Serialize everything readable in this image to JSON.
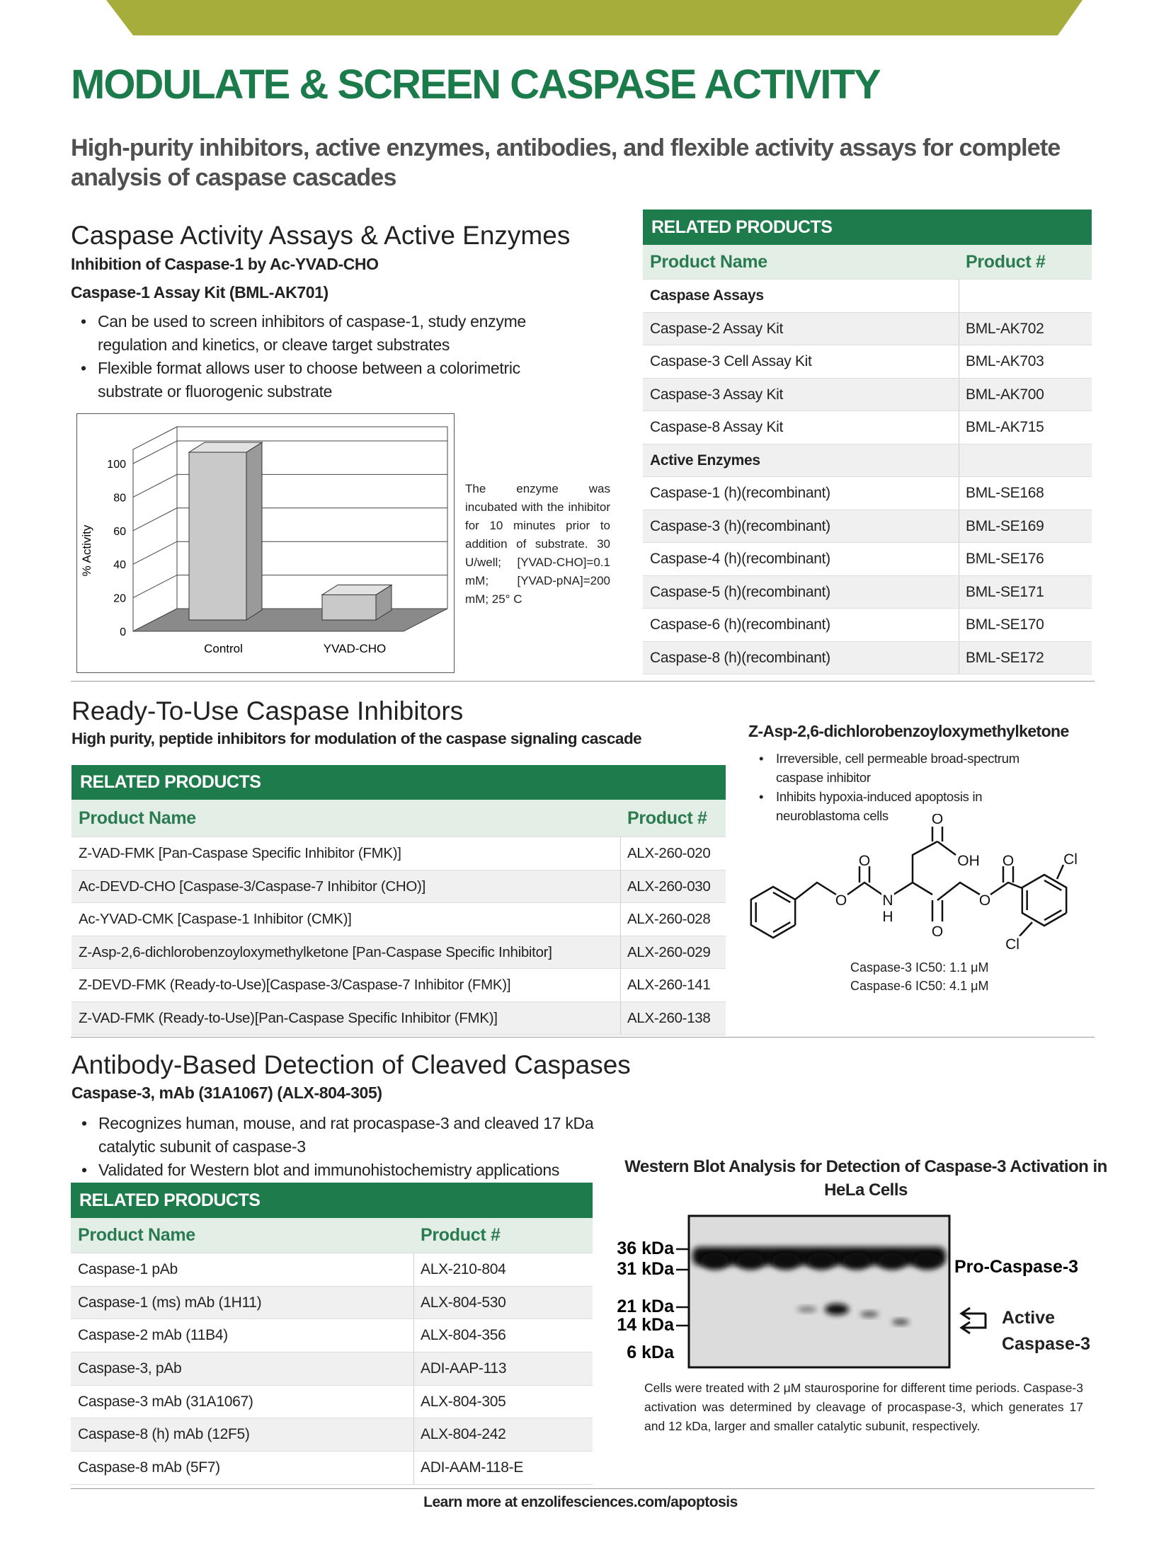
{
  "header": {
    "title": "MODULATE & SCREEN CASPASE ACTIVITY",
    "subtitle": "High-purity inhibitors, active enzymes, antibodies, and flexible activity assays for complete analysis of caspase cascades"
  },
  "sections": [
    {
      "title": "Caspase Activity Assays & Active Enzymes",
      "subtitle": "Inhibition of Caspase-1 by Ac-YVAD-CHO",
      "product": "Caspase-1 Assay Kit (BML-AK701)",
      "bullets": [
        "Can be used to screen inhibitors of caspase-1, study enzyme regulation and kinetics, or cleave target substrates",
        "Flexible format allows user to choose between a colorimetric substrate or fluorogenic substrate"
      ],
      "chart": {
        "type": "bar",
        "y_label": "% Activity",
        "categories": [
          "Control",
          "YVAD-CHO"
        ],
        "values": [
          100,
          15
        ],
        "color": "#c9c9c9",
        "ylim": [
          0,
          100
        ],
        "yticks": [
          0,
          20,
          40,
          60,
          80,
          100
        ],
        "grid": true
      },
      "caption": "The enzyme was incubated with the inhibitor for 10 minutes prior to addition of substrate. 30 U/well; [YVAD-CHO]=0.1 mM; [YVAD-pNA]=200 mM; 25° C",
      "table": {
        "heading": "RELATED PRODUCTS",
        "columns": [
          "Product Name",
          "Product #"
        ],
        "groups": [
          {
            "name": "Caspase Assays",
            "rows": [
              [
                "Caspase-2 Assay Kit",
                "BML-AK702"
              ],
              [
                "Caspase-3 Cell Assay Kit",
                "BML-AK703"
              ],
              [
                "Caspase-3 Assay Kit",
                "BML-AK700"
              ],
              [
                "Caspase-8 Assay Kit",
                "BML-AK715"
              ]
            ]
          },
          {
            "name": "Active Enzymes",
            "rows": [
              [
                "Caspase-1 (h)(recombinant)",
                "BML-SE168"
              ],
              [
                "Caspase-3 (h)(recombinant)",
                "BML-SE169"
              ],
              [
                "Caspase-4 (h)(recombinant)",
                "BML-SE176"
              ],
              [
                "Caspase-5 (h)(recombinant)",
                "BML-SE171"
              ],
              [
                "Caspase-6 (h)(recombinant)",
                "BML-SE170"
              ],
              [
                "Caspase-8 (h)(recombinant)",
                "BML-SE172"
              ]
            ]
          }
        ]
      }
    },
    {
      "title": "Ready-To-Use Caspase Inhibitors",
      "subtitle": "High purity, peptide inhibitors for modulation of the caspase signaling cascade",
      "table": {
        "heading": "RELATED PRODUCTS",
        "columns": [
          "Product Name",
          "Product #"
        ],
        "rows": [
          [
            "Z-VAD-FMK [Pan-Caspase Specific Inhibitor (FMK)]",
            "ALX-260-020"
          ],
          [
            "Ac-DEVD-CHO [Caspase-3/Caspase-7 Inhibitor (CHO)]",
            "ALX-260-030"
          ],
          [
            "Ac-YVAD-CMK [Caspase-1 Inhibitor (CMK)]",
            "ALX-260-028"
          ],
          [
            "Z-Asp-2,6-dichlorobenzoyloxymethylketone [Pan-Caspase Specific Inhibitor]",
            "ALX-260-029"
          ],
          [
            "Z-DEVD-FMK (Ready-to-Use)[Caspase-3/Caspase-7 Inhibitor (FMK)]",
            "ALX-260-141"
          ],
          [
            "Z-VAD-FMK (Ready-to-Use)[Pan-Caspase Specific Inhibitor (FMK)]",
            "ALX-260-138"
          ]
        ]
      },
      "compound": {
        "name": "Z-Asp-2,6-dichlorobenzoyloxymethylketone",
        "bullets": [
          "Irreversible, cell permeable broad-spectrum caspase inhibitor",
          "Inhibits hypoxia-induced apoptosis in neuroblastoma cells"
        ],
        "atoms": [
          "O",
          "O",
          "N",
          "H",
          "O",
          "OH",
          "O",
          "O",
          "O",
          "Cl",
          "Cl"
        ],
        "ic50": [
          "Caspase-3 IC50: 1.1 μM",
          "Caspase-6 IC50: 4.1 μM"
        ]
      }
    },
    {
      "title": "Antibody-Based Detection of Cleaved Caspases",
      "product": "Caspase-3, mAb (31A1067) (ALX-804-305)",
      "bullets": [
        "Recognizes human, mouse, and rat procaspase-3 and cleaved 17 kDa catalytic subunit of caspase-3",
        "Validated for Western blot and immunohistochemistry applications"
      ],
      "table": {
        "heading": "RELATED PRODUCTS",
        "columns": [
          "Product Name",
          "Product #"
        ],
        "rows": [
          [
            "Caspase-1 pAb",
            "ALX-210-804"
          ],
          [
            "Caspase-1 (ms) mAb (1H11)",
            "ALX-804-530"
          ],
          [
            "Caspase-2 mAb (11B4)",
            "ALX-804-356"
          ],
          [
            "Caspase-3, pAb",
            "ADI-AAP-113"
          ],
          [
            "Caspase-3 mAb (31A1067)",
            "ALX-804-305"
          ],
          [
            "Caspase-8 (h) mAb (12F5)",
            "ALX-804-242"
          ],
          [
            "Caspase-8 mAb (5F7)",
            "ADI-AAM-118-E"
          ]
        ]
      },
      "blot": {
        "title": "Western Blot Analysis for Detection of Caspase-3 Activation in HeLa Cells",
        "markers": [
          "36 kDa",
          "31 kDa",
          "21 kDa",
          "14 kDa",
          "6 kDa"
        ],
        "labels": [
          "Pro-Caspase-3",
          "Active Caspase-3"
        ],
        "caption": "Cells were treated with 2 μM staurosporine for different time periods. Caspase-3 activation was determined by cleavage of procaspase-3, which generates 17 and 12 kDa, larger and smaller catalytic subunit, respectively."
      }
    }
  ],
  "footer": {
    "text": "Learn more at enzolifesciences.com/apoptosis"
  }
}
